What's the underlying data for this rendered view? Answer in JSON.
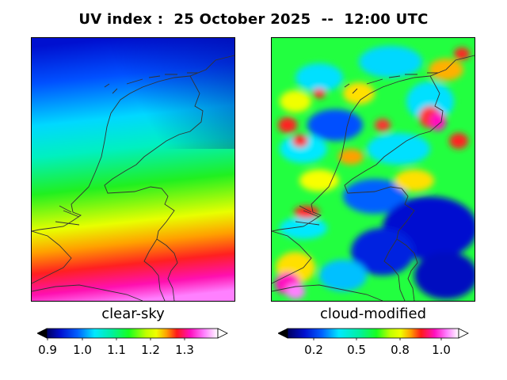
{
  "title": "UV index :  25 October 2025  --  12:00 UTC",
  "panels": {
    "left": {
      "label": "clear-sky",
      "colorbar_ticks": [
        "0.9",
        "1.0",
        "1.1",
        "1.2",
        "1.3"
      ],
      "colorbar_range": [
        0.85,
        1.4
      ]
    },
    "right": {
      "label": "cloud-modified",
      "colorbar_ticks": [
        "0.2",
        "0.5",
        "0.8",
        "1.0"
      ],
      "colorbar_range": [
        0.0,
        1.1
      ]
    }
  },
  "colormap": "gist_ncar-like (black, blue, cyan, green, yellow, red, magenta, white)",
  "colors": {
    "deep_blue": "#0010d0",
    "blue": "#0060ff",
    "cyan": "#00e8ff",
    "green": "#18ff20",
    "yellow": "#f0ff00",
    "orange": "#ffa000",
    "red": "#ff1a1a",
    "magenta": "#ff10c0",
    "pink": "#ff80ff",
    "border_line": "#333333"
  }
}
